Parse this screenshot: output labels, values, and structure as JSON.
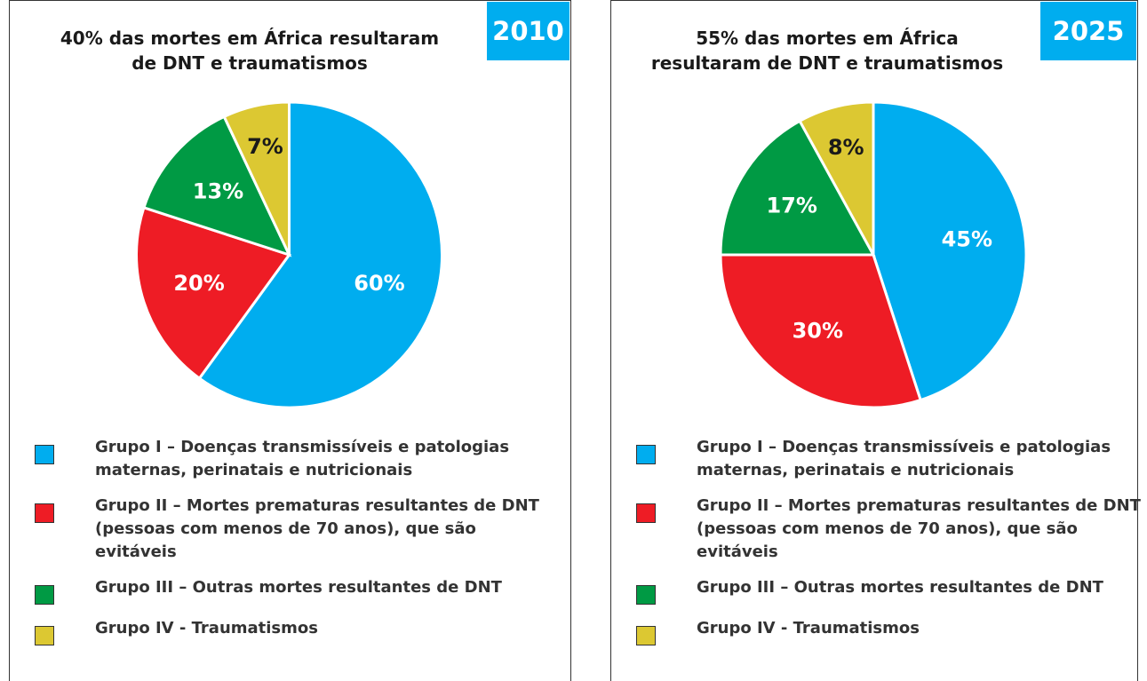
{
  "chart_data": [
    {
      "type": "pie",
      "badge": "2010",
      "title": "40% das mortes em África resultaram de DNT e traumatismos",
      "categories": [
        "Grupo I – Doenças transmissíveis e patologias maternas, perinatais e nutricionais",
        "Grupo II – Mortes prematuras resultantes de DNT (pessoas com menos de 70 anos), que são evitáveis",
        "Grupo III – Outras mortes resultantes de DNT",
        "Grupo IV - Traumatismos"
      ],
      "values": [
        60,
        20,
        13,
        7
      ],
      "value_labels": [
        "60%",
        "20%",
        "13%",
        "7%"
      ],
      "colors": [
        "#00adef",
        "#ee1c25",
        "#009a44",
        "#dcc832"
      ],
      "label_colors": [
        "#ffffff",
        "#ffffff",
        "#ffffff",
        "#1a1a1a"
      ]
    },
    {
      "type": "pie",
      "badge": "2025",
      "title": "55% das mortes em África resultaram de DNT e traumatismos",
      "categories": [
        "Grupo I – Doenças transmissíveis e patologias maternas, perinatais e nutricionais",
        "Grupo II – Mortes prematuras resultantes de DNT (pessoas com menos de 70 anos), que são evitáveis",
        "Grupo III – Outras mortes resultantes de DNT",
        "Grupo IV - Traumatismos"
      ],
      "values": [
        45,
        30,
        17,
        8
      ],
      "value_labels": [
        "45%",
        "30%",
        "17%",
        "8%"
      ],
      "colors": [
        "#00adef",
        "#ee1c25",
        "#009a44",
        "#dcc832"
      ],
      "label_colors": [
        "#ffffff",
        "#ffffff",
        "#ffffff",
        "#1a1a1a"
      ]
    }
  ]
}
